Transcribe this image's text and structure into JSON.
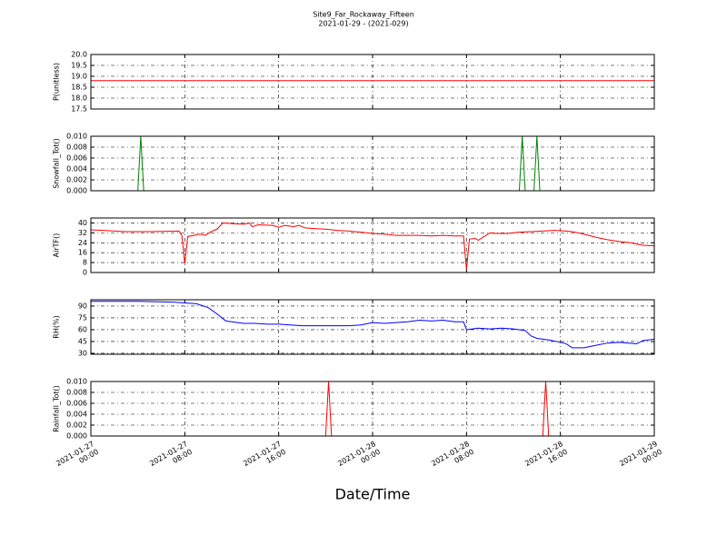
{
  "title": "Site9_Far_Rockaway_Fifteen",
  "subtitle": "2021-01-29 - (2021-029)",
  "xlabel": "Date/Time",
  "xlim": [
    "2021-01-27 00:00",
    "2021-01-29 00:00"
  ],
  "xticks": [
    {
      "value": "2021-01-27 00:00",
      "label": "2021-01-27\n00:00"
    },
    {
      "value": "2021-01-27 08:00",
      "label": "2021-01-27\n08:00"
    },
    {
      "value": "2021-01-27 16:00",
      "label": "2021-01-27\n16:00"
    },
    {
      "value": "2021-01-28 00:00",
      "label": "2021-01-28\n00:00"
    },
    {
      "value": "2021-01-28 08:00",
      "label": "2021-01-28\n08:00"
    },
    {
      "value": "2021-01-28 16:00",
      "label": "2021-01-28\n16:00"
    },
    {
      "value": "2021-01-29 00:00",
      "label": "2021-01-29\n00:00"
    }
  ],
  "chart_data": [
    {
      "type": "line",
      "ylabel": "P(unitless)",
      "color": "#ff0000",
      "grid": true,
      "ylim": [
        17.5,
        20
      ],
      "yticks": [
        17.5,
        {
          "value": 18,
          "label": "18.0"
        },
        18.5,
        {
          "value": 19,
          "label": "19.0"
        },
        19.5,
        {
          "value": 20,
          "label": "20.0"
        }
      ],
      "x": [
        "2021-01-27 00:00",
        "2021-01-29 00:00"
      ],
      "values": [
        18.8,
        18.8
      ]
    },
    {
      "type": "line",
      "ylabel": "Snowfall_Tot()",
      "color": "#008000",
      "grid": true,
      "ylim": [
        0,
        0.01
      ],
      "yticks": [
        {
          "value": 0,
          "label": "0.000"
        },
        {
          "value": 0.002,
          "label": "0.002"
        },
        {
          "value": 0.004,
          "label": "0.004"
        },
        {
          "value": 0.006,
          "label": "0.006"
        },
        {
          "value": 0.008,
          "label": "0.008"
        },
        {
          "value": 0.01,
          "label": "0.010"
        }
      ],
      "x": [
        "2021-01-27 00:00",
        "2021-01-27 04:00",
        "2021-01-27 04:15",
        "2021-01-27 04:30",
        "2021-01-28 12:30",
        "2021-01-28 12:45",
        "2021-01-28 13:00",
        "2021-01-28 13:45",
        "2021-01-28 14:00",
        "2021-01-28 14:15",
        "2021-01-29 00:00"
      ],
      "values": [
        0,
        0,
        0.01,
        0,
        0,
        0.01,
        0,
        0,
        0.01,
        0,
        0
      ]
    },
    {
      "type": "line",
      "ylabel": "AirTF()",
      "color": "#ff0000",
      "grid": true,
      "ylim": [
        0,
        44
      ],
      "yticks": [
        0,
        8,
        16,
        24,
        32,
        40
      ],
      "x": [
        "2021-01-27 00:00",
        "2021-01-27 01:00",
        "2021-01-27 02:00",
        "2021-01-27 03:00",
        "2021-01-27 05:00",
        "2021-01-27 07:30",
        "2021-01-27 07:45",
        "2021-01-27 08:00",
        "2021-01-27 08:15",
        "2021-01-27 08:45",
        "2021-01-27 09:15",
        "2021-01-27 09:45",
        "2021-01-27 10:15",
        "2021-01-27 10:45",
        "2021-01-27 11:15",
        "2021-01-27 12:00",
        "2021-01-27 13:00",
        "2021-01-27 13:30",
        "2021-01-27 13:45",
        "2021-01-27 14:15",
        "2021-01-27 15:30",
        "2021-01-27 16:00",
        "2021-01-27 16:30",
        "2021-01-27 17:15",
        "2021-01-27 17:45",
        "2021-01-27 18:15",
        "2021-01-27 19:00",
        "2021-01-27 20:00",
        "2021-01-27 21:00",
        "2021-01-27 22:00",
        "2021-01-27 23:00",
        "2021-01-28 00:00",
        "2021-01-28 01:00",
        "2021-01-28 02:00",
        "2021-01-28 04:00",
        "2021-01-28 05:00",
        "2021-01-28 06:00",
        "2021-01-28 07:00",
        "2021-01-28 07:45",
        "2021-01-28 08:00",
        "2021-01-28 08:15",
        "2021-01-28 08:45",
        "2021-01-28 09:00",
        "2021-01-28 09:30",
        "2021-01-28 10:00",
        "2021-01-28 10:30",
        "2021-01-28 11:30",
        "2021-01-28 12:30",
        "2021-01-28 13:30",
        "2021-01-28 14:30",
        "2021-01-28 15:30",
        "2021-01-28 16:30",
        "2021-01-28 17:00",
        "2021-01-28 18:00",
        "2021-01-28 19:00",
        "2021-01-28 20:00",
        "2021-01-28 21:00",
        "2021-01-28 22:00",
        "2021-01-28 23:00",
        "2021-01-29 00:00"
      ],
      "values": [
        34.5,
        34,
        33.5,
        33,
        33,
        33.5,
        30,
        7,
        29,
        30,
        31,
        30,
        33,
        35,
        40,
        39.5,
        39,
        40,
        37,
        38.5,
        38,
        36.5,
        38,
        37,
        38,
        36,
        35.5,
        35,
        34,
        33.5,
        32.5,
        31.5,
        31,
        30,
        30,
        29.5,
        30,
        29.5,
        29.5,
        2.5,
        27,
        27.5,
        26,
        29,
        32,
        31.5,
        31.5,
        32.5,
        33,
        33.5,
        34,
        33.5,
        33,
        31,
        28.5,
        26.5,
        25,
        24,
        22,
        21.5
      ]
    },
    {
      "type": "line",
      "ylabel": "RH(%)",
      "color": "#0000ff",
      "grid": true,
      "ylim": [
        28.8,
        98
      ],
      "yticks": [
        30,
        45,
        60,
        75,
        90
      ],
      "x": [
        "2021-01-27 00:00",
        "2021-01-27 04:00",
        "2021-01-27 07:00",
        "2021-01-27 08:00",
        "2021-01-27 09:00",
        "2021-01-27 10:00",
        "2021-01-27 10:45",
        "2021-01-27 11:30",
        "2021-01-27 12:00",
        "2021-01-27 13:00",
        "2021-01-27 14:00",
        "2021-01-27 15:00",
        "2021-01-27 16:00",
        "2021-01-27 17:00",
        "2021-01-27 18:00",
        "2021-01-27 20:00",
        "2021-01-27 22:00",
        "2021-01-27 23:00",
        "2021-01-28 00:00",
        "2021-01-28 01:00",
        "2021-01-28 02:00",
        "2021-01-28 03:00",
        "2021-01-28 04:00",
        "2021-01-28 05:00",
        "2021-01-28 06:00",
        "2021-01-28 07:00",
        "2021-01-28 07:45",
        "2021-01-28 08:00",
        "2021-01-28 09:00",
        "2021-01-28 10:00",
        "2021-01-28 11:00",
        "2021-01-28 12:00",
        "2021-01-28 13:00",
        "2021-01-28 13:30",
        "2021-01-28 14:00",
        "2021-01-28 15:00",
        "2021-01-28 16:00",
        "2021-01-28 16:30",
        "2021-01-28 17:00",
        "2021-01-28 18:00",
        "2021-01-28 19:00",
        "2021-01-28 20:00",
        "2021-01-28 21:00",
        "2021-01-28 22:30",
        "2021-01-28 23:00",
        "2021-01-29 00:00"
      ],
      "values": [
        96,
        96,
        95,
        94,
        93,
        88,
        80,
        71,
        70,
        68,
        68,
        67,
        67,
        66,
        65,
        65,
        65,
        66,
        69,
        68,
        69,
        70,
        72,
        71,
        72,
        70,
        70,
        60,
        62,
        61,
        62,
        61,
        59,
        52,
        49,
        47,
        44,
        42,
        37,
        37,
        40,
        43,
        44,
        42,
        46,
        48
      ]
    },
    {
      "type": "line",
      "ylabel": "Rainfall_Tot()",
      "color": "#ff0000",
      "grid": true,
      "ylim": [
        0,
        0.01
      ],
      "yticks": [
        {
          "value": 0,
          "label": "0.000"
        },
        {
          "value": 0.002,
          "label": "0.002"
        },
        {
          "value": 0.004,
          "label": "0.004"
        },
        {
          "value": 0.006,
          "label": "0.006"
        },
        {
          "value": 0.008,
          "label": "0.008"
        },
        {
          "value": 0.01,
          "label": "0.010"
        }
      ],
      "x": [
        "2021-01-27 00:00",
        "2021-01-27 20:00",
        "2021-01-27 20:15",
        "2021-01-27 20:30",
        "2021-01-28 14:30",
        "2021-01-28 14:45",
        "2021-01-28 15:00",
        "2021-01-29 00:00"
      ],
      "values": [
        0,
        0,
        0.01,
        0,
        0,
        0.01,
        0,
        0
      ]
    }
  ]
}
